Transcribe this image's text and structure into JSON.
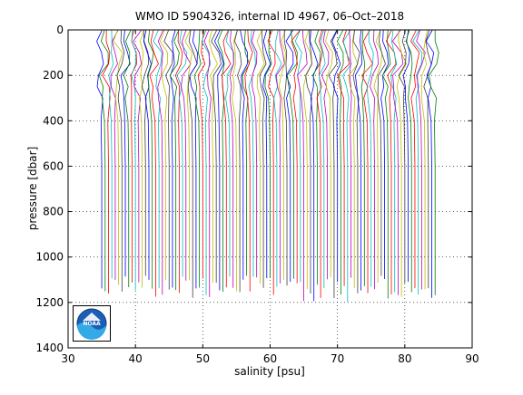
{
  "figure": {
    "title": "WMO ID 5904326, internal ID 4967, 06–Oct–2018",
    "logo": {
      "icon": "noaa-logo-icon",
      "text": "NOAA"
    }
  },
  "colors": {
    "background": "#ffffff",
    "axes": "#000000",
    "grid": "#000000",
    "logo_blue": "#1a5fb4",
    "logo_light_blue": "#33a9e6",
    "series_palette": [
      "#0000ff",
      "#008000",
      "#ff0000",
      "#00bfbf",
      "#bf00bf",
      "#bfbf00",
      "#404040"
    ]
  },
  "chart_data": {
    "type": "line",
    "title": "WMO ID 5904326, internal ID 4967, 06–Oct–2018",
    "xlabel": "salinity [psu]",
    "ylabel": "pressure [dbar]",
    "xlim": [
      30,
      90
    ],
    "ylim": [
      0,
      1400
    ],
    "y_reversed": true,
    "xticks": [
      30,
      40,
      50,
      60,
      70,
      80,
      90
    ],
    "yticks": [
      0,
      200,
      400,
      600,
      800,
      1000,
      1200,
      1400
    ],
    "grid": "dotted",
    "legend": "none",
    "profile_offsets": {
      "description": "waterfall of salinity profiles, each offset by a constant",
      "first_surface_salinity": 35.0,
      "last_surface_salinity": 84.5,
      "count": 100
    },
    "profile_shape": {
      "pressure": [
        0,
        50,
        100,
        150,
        200,
        250,
        300,
        400,
        600,
        800,
        1000,
        1200
      ],
      "salinity_anomaly": [
        0.0,
        -0.4,
        0.2,
        0.3,
        -0.5,
        -0.3,
        -0.2,
        -0.1,
        0.0,
        0.0,
        0.0,
        0.0
      ]
    },
    "deep_end_pressure_range": [
      1080,
      1200
    ]
  }
}
